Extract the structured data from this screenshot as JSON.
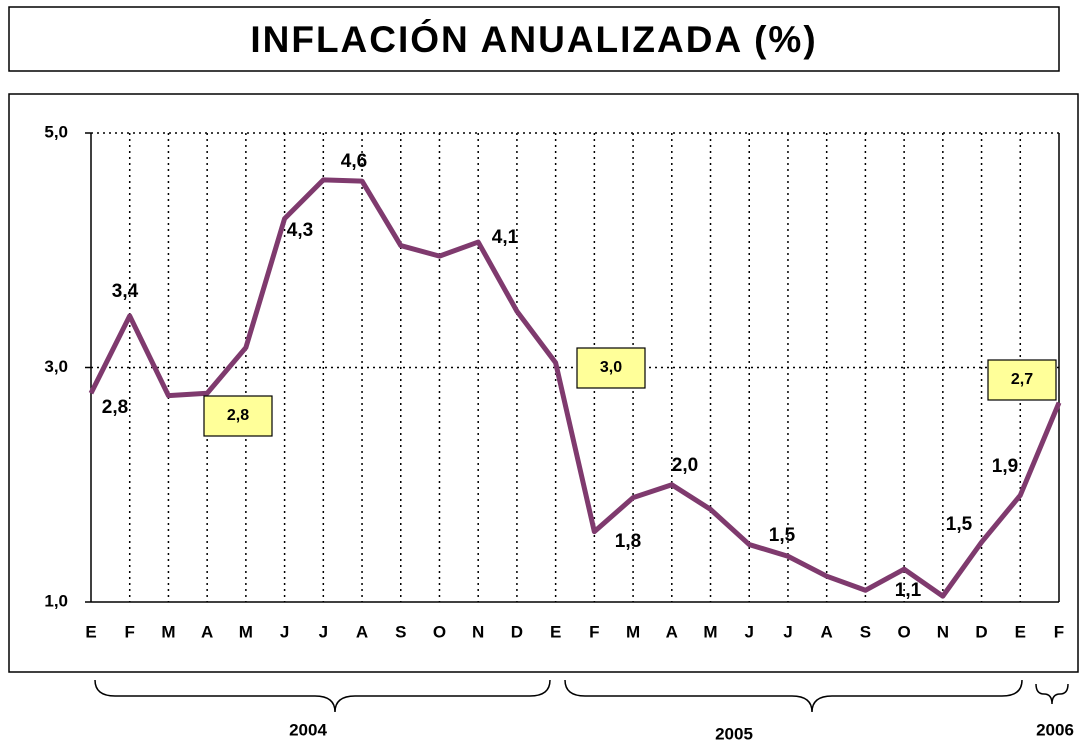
{
  "chart_data": {
    "type": "line",
    "title": "INFLACIÓN ANUALIZADA (%)",
    "categories": [
      "E",
      "F",
      "M",
      "A",
      "M",
      "J",
      "J",
      "A",
      "S",
      "O",
      "N",
      "D",
      "E",
      "F",
      "M",
      "A",
      "M",
      "J",
      "J",
      "A",
      "S",
      "O",
      "N",
      "D",
      "E",
      "F"
    ],
    "groups": [
      "2004",
      "2005",
      "2006"
    ],
    "series": [
      {
        "name": "Inflación anualizada",
        "color": "#7f3a6e",
        "values": [
          2.78,
          3.44,
          2.76,
          2.78,
          3.17,
          4.27,
          4.6,
          4.59,
          4.04,
          3.95,
          4.07,
          3.48,
          3.04,
          1.6,
          1.89,
          2.0,
          1.79,
          1.49,
          1.39,
          1.22,
          1.1,
          1.28,
          1.05,
          1.51,
          1.91,
          2.7
        ]
      }
    ],
    "ylim": [
      1,
      5
    ],
    "yticks": [
      {
        "value": 1,
        "label": "1,0"
      },
      {
        "value": 3,
        "label": "3,0"
      },
      {
        "value": 5,
        "label": "5,0"
      }
    ],
    "grid": true,
    "annotations": [
      {
        "text": "3,4",
        "boxed": false
      },
      {
        "text": "2,8",
        "boxed": false
      },
      {
        "text": "2,8",
        "boxed": true
      },
      {
        "text": "4,3",
        "boxed": false
      },
      {
        "text": "4,6",
        "boxed": false
      },
      {
        "text": "4,1",
        "boxed": false
      },
      {
        "text": "3,0",
        "boxed": true
      },
      {
        "text": "1,8",
        "boxed": false
      },
      {
        "text": "2,0",
        "boxed": false
      },
      {
        "text": "1,5",
        "boxed": false
      },
      {
        "text": "1,1",
        "boxed": false
      },
      {
        "text": "1,5",
        "boxed": false
      },
      {
        "text": "1,9",
        "boxed": false
      },
      {
        "text": "2,7",
        "boxed": true
      }
    ]
  }
}
